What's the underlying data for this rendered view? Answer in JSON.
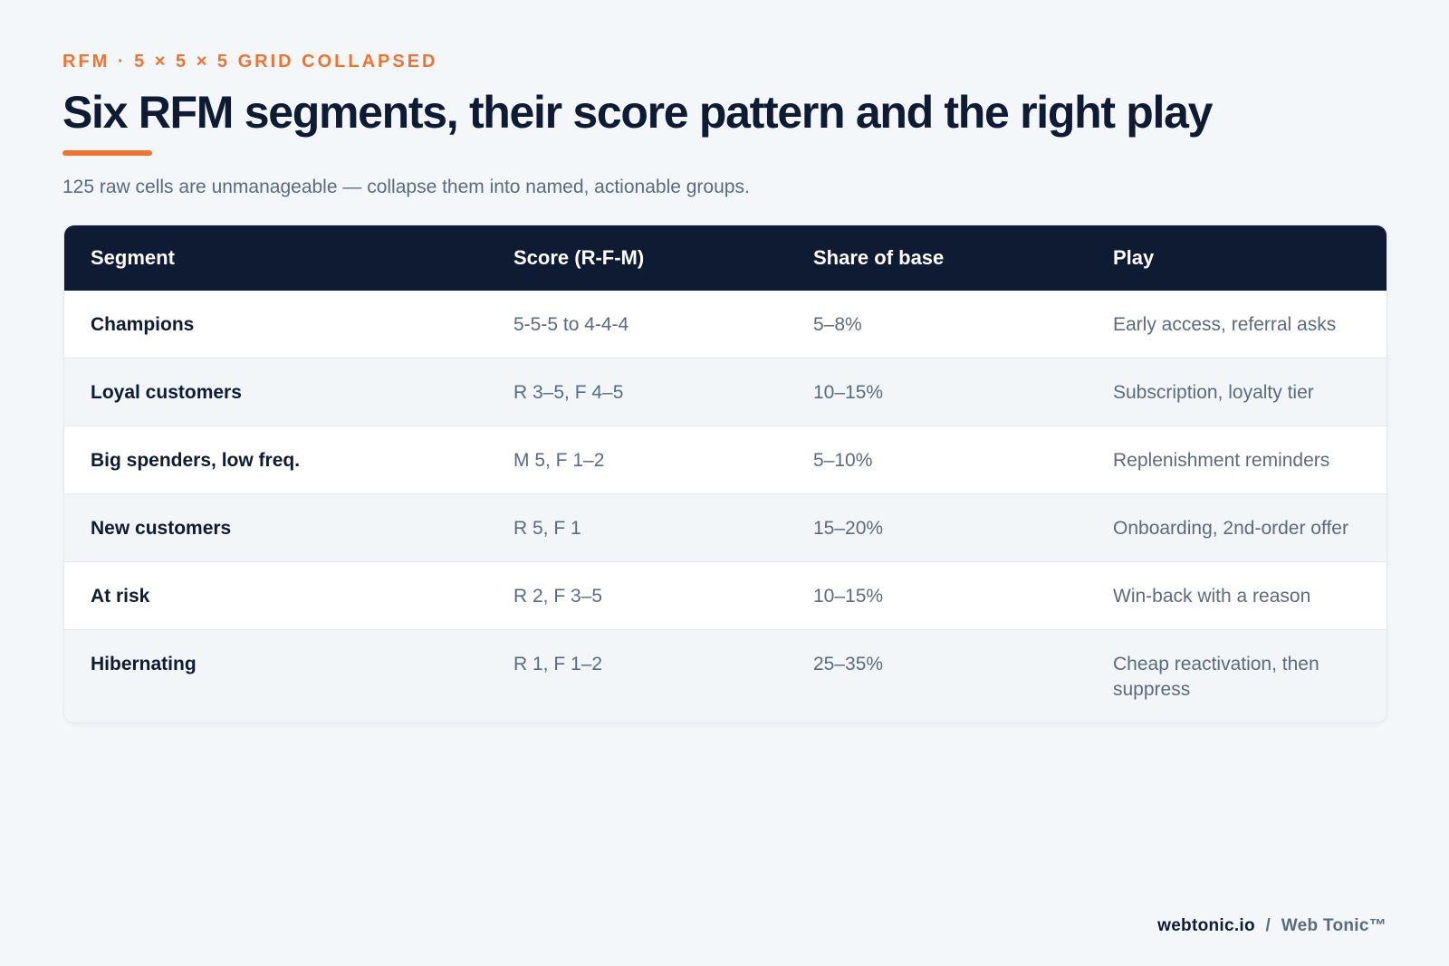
{
  "header": {
    "eyebrow": "RFM · 5 × 5 × 5 GRID COLLAPSED",
    "title": "Six RFM segments, their score pattern and the right play",
    "subtitle": "125 raw cells are unmanageable — collapse them into named, actionable groups."
  },
  "colors": {
    "accent": "#f07230",
    "navy": "#0e1b33",
    "muted": "#5d6a7c"
  },
  "table": {
    "columns": [
      "Segment",
      "Score (R-F-M)",
      "Share of base",
      "Play"
    ],
    "rows": [
      {
        "segment": "Champions",
        "score": "5-5-5 to 4-4-4",
        "share": "5–8%",
        "play": "Early access, referral asks"
      },
      {
        "segment": "Loyal customers",
        "score": "R 3–5, F 4–5",
        "share": "10–15%",
        "play": "Subscription, loyalty tier"
      },
      {
        "segment": "Big spenders, low freq.",
        "score": "M 5, F 1–2",
        "share": "5–10%",
        "play": "Replenishment reminders"
      },
      {
        "segment": "New customers",
        "score": "R 5, F 1",
        "share": "15–20%",
        "play": "Onboarding, 2nd-order offer"
      },
      {
        "segment": "At risk",
        "score": "R 2, F 3–5",
        "share": "10–15%",
        "play": "Win-back with a reason"
      },
      {
        "segment": "Hibernating",
        "score": "R 1, F 1–2",
        "share": "25–35%",
        "play": "Cheap reactivation, then suppress"
      }
    ]
  },
  "footer": {
    "domain": "webtonic.io",
    "separator": "/",
    "brand": "Web Tonic™"
  }
}
